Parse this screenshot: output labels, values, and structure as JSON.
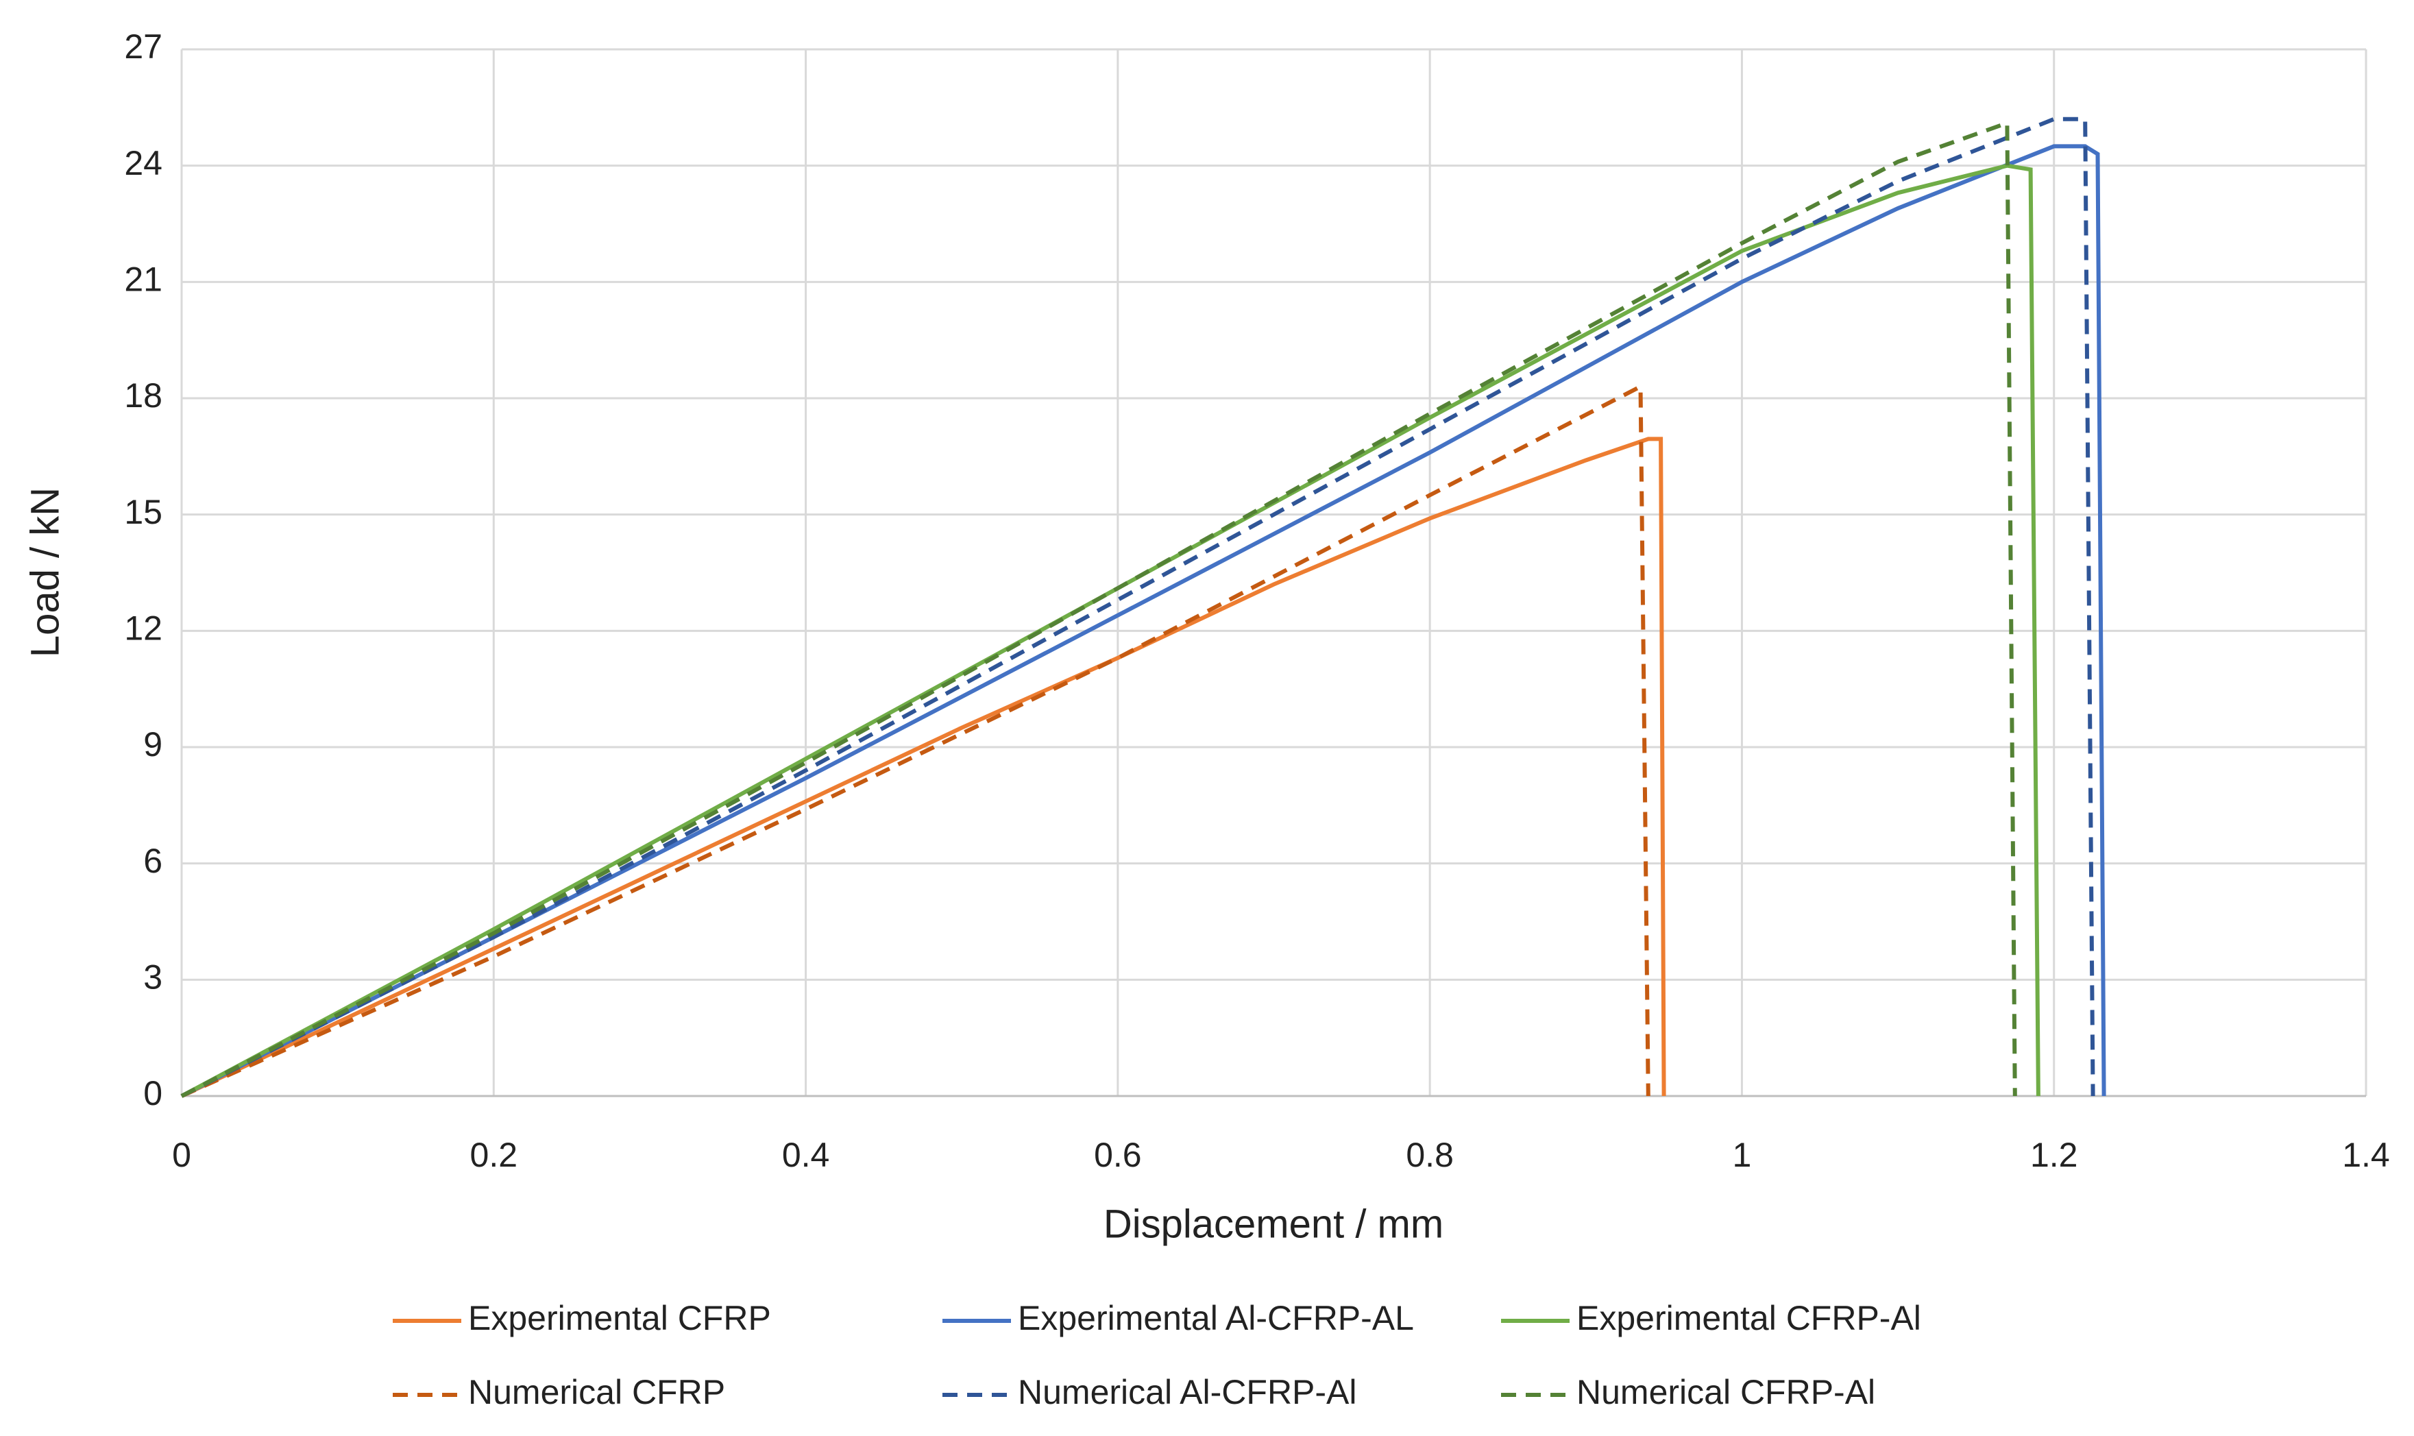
{
  "chart_data": {
    "type": "line",
    "xlabel": "Displacement / mm",
    "ylabel": "Load / kN",
    "xlim": [
      0,
      1.4
    ],
    "xticks": [
      0,
      0.2,
      0.4,
      0.6,
      0.8,
      1,
      1.2,
      1.4
    ],
    "ylim": [
      0,
      27
    ],
    "yticks": [
      0,
      3,
      6,
      9,
      12,
      15,
      18,
      21,
      24,
      27
    ],
    "grid": true,
    "legend": "bottom",
    "series": [
      {
        "name": "Experimental CFRP",
        "color": "#ed7d31",
        "linestyle": "solid",
        "x": [
          0,
          0.1,
          0.2,
          0.3,
          0.4,
          0.5,
          0.6,
          0.7,
          0.8,
          0.9,
          0.94,
          0.948,
          0.95
        ],
        "values": [
          0,
          1.9,
          3.8,
          5.7,
          7.6,
          9.5,
          11.3,
          13.2,
          14.9,
          16.4,
          16.95,
          16.95,
          0
        ]
      },
      {
        "name": "Experimental Al-CFRP-AL",
        "color": "#4472c4",
        "linestyle": "solid",
        "x": [
          0,
          0.2,
          0.4,
          0.6,
          0.8,
          1.0,
          1.1,
          1.2,
          1.22,
          1.228,
          1.232
        ],
        "values": [
          0,
          4.1,
          8.2,
          12.4,
          16.6,
          21.0,
          22.9,
          24.5,
          24.5,
          24.3,
          0
        ]
      },
      {
        "name": "Experimental CFRP-Al",
        "color": "#70ad47",
        "linestyle": "solid",
        "x": [
          0,
          0.2,
          0.4,
          0.6,
          0.8,
          1.0,
          1.1,
          1.17,
          1.185,
          1.19
        ],
        "values": [
          0,
          4.3,
          8.7,
          13.1,
          17.5,
          21.8,
          23.3,
          24.0,
          23.9,
          0
        ]
      },
      {
        "name": "Numerical CFRP",
        "color": "#c55a11",
        "linestyle": "dashed",
        "x": [
          0,
          0.2,
          0.4,
          0.6,
          0.8,
          0.935,
          0.94
        ],
        "values": [
          0,
          3.6,
          7.4,
          11.3,
          15.5,
          18.3,
          0
        ]
      },
      {
        "name": "Numerical Al-CFRP-Al",
        "color": "#2f5597",
        "linestyle": "dashed",
        "x": [
          0,
          0.2,
          0.4,
          0.6,
          0.8,
          1.0,
          1.1,
          1.2,
          1.22,
          1.225
        ],
        "values": [
          0,
          4.1,
          8.4,
          12.8,
          17.2,
          21.6,
          23.6,
          25.2,
          25.2,
          0
        ]
      },
      {
        "name": "Numerical CFRP-Al",
        "color": "#548235",
        "linestyle": "dashed",
        "x": [
          0,
          0.2,
          0.4,
          0.6,
          0.8,
          1.0,
          1.1,
          1.17,
          1.175
        ],
        "values": [
          0,
          4.2,
          8.6,
          13.1,
          17.6,
          22.0,
          24.1,
          25.1,
          0
        ]
      }
    ]
  }
}
